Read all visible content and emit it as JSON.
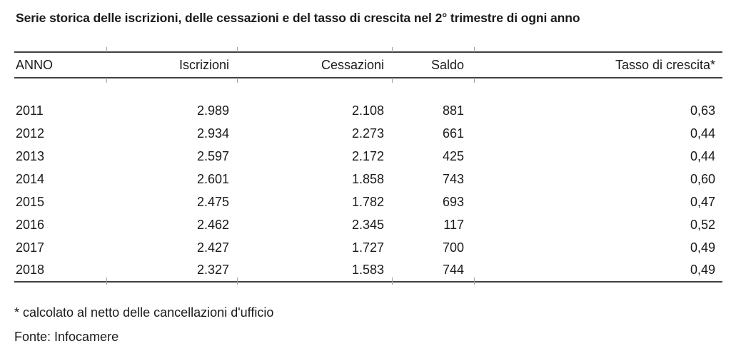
{
  "title": "Serie storica delle iscrizioni, delle cessazioni e del tasso di crescita nel 2° trimestre di ogni anno",
  "table": {
    "headers": {
      "anno": "ANNO",
      "iscrizioni": "Iscrizioni",
      "cessazioni": "Cessazioni",
      "saldo": "Saldo",
      "tasso": "Tasso di crescita*"
    },
    "rows": [
      {
        "anno": "2011",
        "iscrizioni": "2.989",
        "cessazioni": "2.108",
        "saldo": "881",
        "tasso": "0,63"
      },
      {
        "anno": "2012",
        "iscrizioni": "2.934",
        "cessazioni": "2.273",
        "saldo": "661",
        "tasso": "0,44"
      },
      {
        "anno": "2013",
        "iscrizioni": "2.597",
        "cessazioni": "2.172",
        "saldo": "425",
        "tasso": "0,44"
      },
      {
        "anno": "2014",
        "iscrizioni": "2.601",
        "cessazioni": "1.858",
        "saldo": "743",
        "tasso": "0,60"
      },
      {
        "anno": "2015",
        "iscrizioni": "2.475",
        "cessazioni": "1.782",
        "saldo": "693",
        "tasso": "0,47"
      },
      {
        "anno": "2016",
        "iscrizioni": "2.462",
        "cessazioni": "2.345",
        "saldo": "117",
        "tasso": "0,52"
      },
      {
        "anno": "2017",
        "iscrizioni": "2.427",
        "cessazioni": "1.727",
        "saldo": "700",
        "tasso": "0,49"
      },
      {
        "anno": "2018",
        "iscrizioni": "2.327",
        "cessazioni": "1.583",
        "saldo": "744",
        "tasso": "0,49"
      }
    ]
  },
  "footnotes": {
    "asterisk_note": "* calcolato al netto delle cancellazioni d'ufficio",
    "source": "Fonte: Infocamere"
  },
  "colors": {
    "background": "#ffffff",
    "text": "#1a1a1a",
    "rule": "#404040",
    "tick": "#a3a3a3"
  }
}
